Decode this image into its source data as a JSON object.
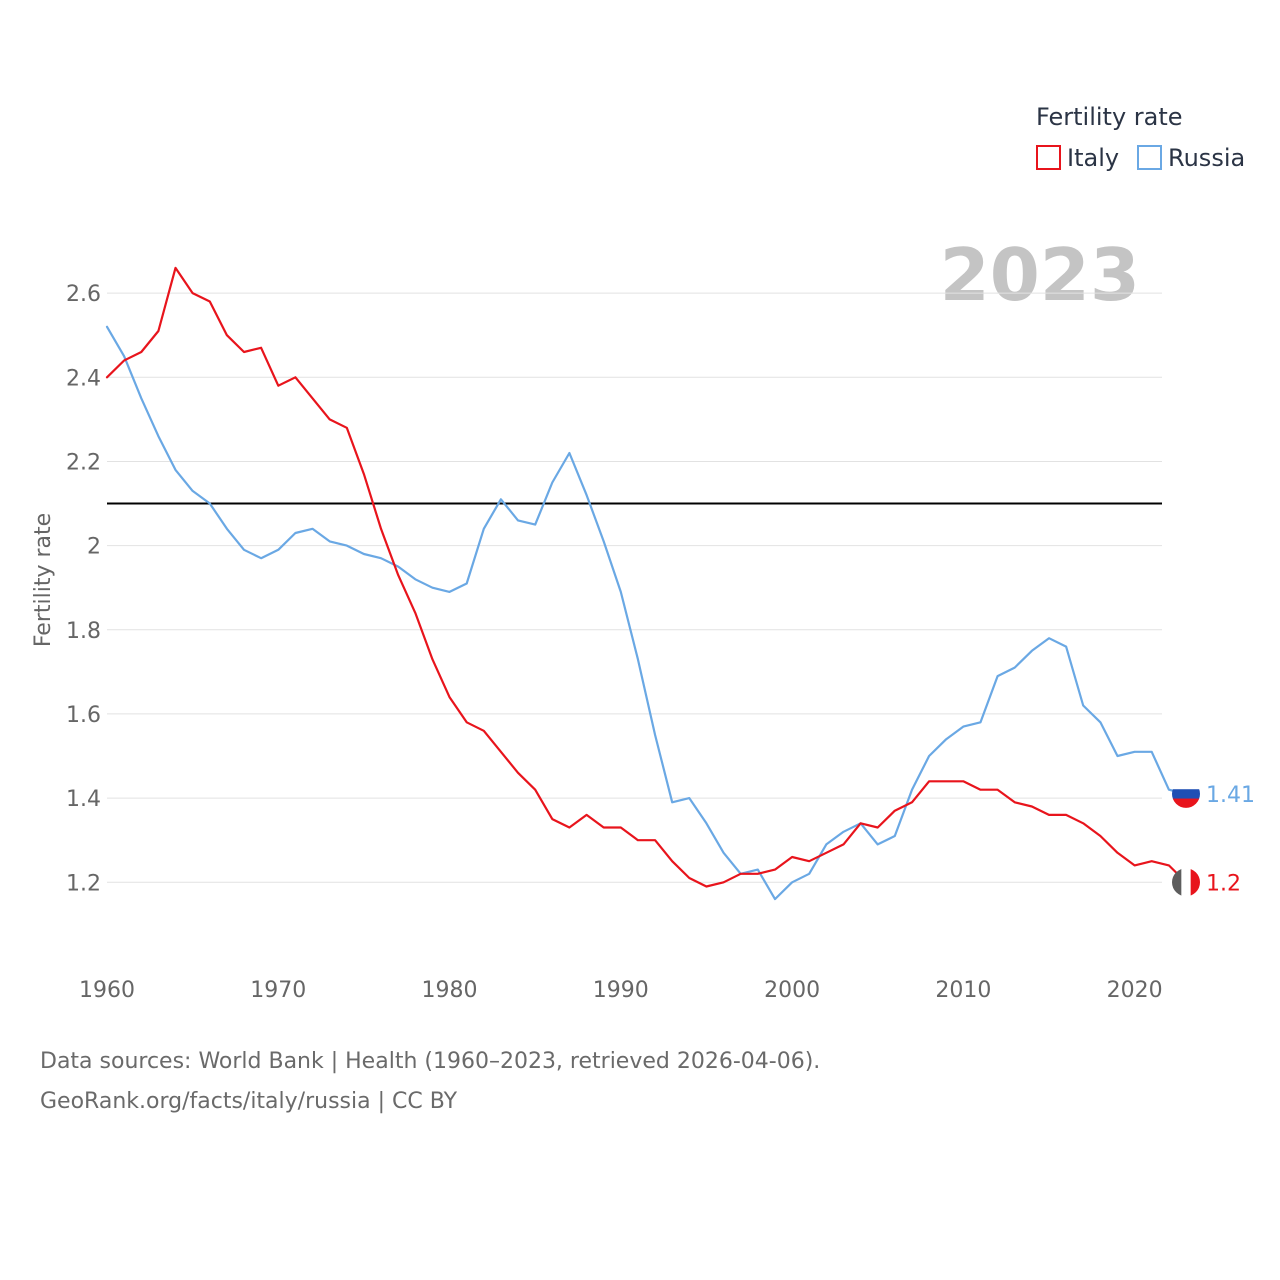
{
  "chart_data": {
    "type": "line",
    "year_label": "2023",
    "legend": {
      "title": "Fertility rate",
      "placement": "top-right"
    },
    "ylabel": "Fertility rate",
    "xlabel": "",
    "xlim": [
      1960,
      2023
    ],
    "ylim": [
      1.02,
      2.75
    ],
    "yticks": [
      1.2,
      1.4,
      1.6,
      1.8,
      2.0,
      2.2,
      2.4,
      2.6
    ],
    "ytick_labels": [
      "1.2",
      "1.4",
      "1.6",
      "1.8",
      "2",
      "2.2",
      "2.4",
      "2.6"
    ],
    "xticks": [
      1960,
      1970,
      1980,
      1990,
      2000,
      2010,
      2020
    ],
    "xtick_labels": [
      "1960",
      "1970",
      "1980",
      "1990",
      "2000",
      "2010",
      "2020"
    ],
    "grid": true,
    "reference_line": {
      "y": 2.1,
      "color": "#000000"
    },
    "x": [
      1960,
      1961,
      1962,
      1963,
      1964,
      1965,
      1966,
      1967,
      1968,
      1969,
      1970,
      1971,
      1972,
      1973,
      1974,
      1975,
      1976,
      1977,
      1978,
      1979,
      1980,
      1981,
      1982,
      1983,
      1984,
      1985,
      1986,
      1987,
      1988,
      1989,
      1990,
      1991,
      1992,
      1993,
      1994,
      1995,
      1996,
      1997,
      1998,
      1999,
      2000,
      2001,
      2002,
      2003,
      2004,
      2005,
      2006,
      2007,
      2008,
      2009,
      2010,
      2011,
      2012,
      2013,
      2014,
      2015,
      2016,
      2017,
      2018,
      2019,
      2020,
      2021,
      2022,
      2023
    ],
    "series": [
      {
        "name": "Italy",
        "color": "#e8141c",
        "end_label": "1.2",
        "flag": "italy-flag-icon",
        "values": [
          2.4,
          2.44,
          2.46,
          2.51,
          2.66,
          2.6,
          2.58,
          2.5,
          2.46,
          2.47,
          2.38,
          2.4,
          2.35,
          2.3,
          2.28,
          2.17,
          2.04,
          1.93,
          1.84,
          1.73,
          1.64,
          1.58,
          1.56,
          1.51,
          1.46,
          1.42,
          1.35,
          1.33,
          1.36,
          1.33,
          1.33,
          1.3,
          1.3,
          1.25,
          1.21,
          1.19,
          1.2,
          1.22,
          1.22,
          1.23,
          1.26,
          1.25,
          1.27,
          1.29,
          1.34,
          1.33,
          1.37,
          1.39,
          1.44,
          1.44,
          1.44,
          1.42,
          1.42,
          1.39,
          1.38,
          1.36,
          1.36,
          1.34,
          1.31,
          1.27,
          1.24,
          1.25,
          1.24,
          1.2
        ]
      },
      {
        "name": "Russia",
        "color": "#6aa8e4",
        "end_label": "1.41",
        "flag": "russia-flag-icon",
        "values": [
          2.52,
          2.45,
          2.35,
          2.26,
          2.18,
          2.13,
          2.1,
          2.04,
          1.99,
          1.97,
          1.99,
          2.03,
          2.04,
          2.01,
          2.0,
          1.98,
          1.97,
          1.95,
          1.92,
          1.9,
          1.89,
          1.91,
          2.04,
          2.11,
          2.06,
          2.05,
          2.15,
          2.22,
          2.12,
          2.01,
          1.89,
          1.73,
          1.55,
          1.39,
          1.4,
          1.34,
          1.27,
          1.22,
          1.23,
          1.16,
          1.2,
          1.22,
          1.29,
          1.32,
          1.34,
          1.29,
          1.31,
          1.42,
          1.5,
          1.54,
          1.57,
          1.58,
          1.69,
          1.71,
          1.75,
          1.78,
          1.76,
          1.62,
          1.58,
          1.5,
          1.51,
          1.51,
          1.42,
          1.41
        ]
      }
    ],
    "source": {
      "line1": "Data sources: World Bank | Health (1960–2023, retrieved 2026-04-06).",
      "line2": "GeoRank.org/facts/italy/russia | CC BY"
    }
  }
}
